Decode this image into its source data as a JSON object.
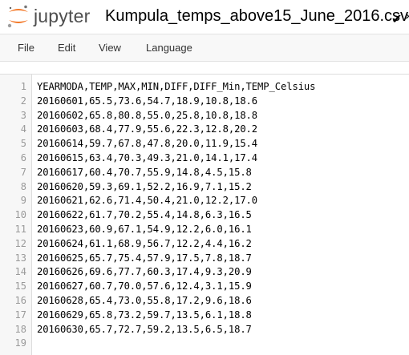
{
  "header": {
    "logo_text": "jupyter",
    "filename": "Kumpula_temps_above15_June_2016.csv",
    "saved_icon": "checkmark-icon",
    "more_icon": "more-icon"
  },
  "menu": {
    "items": [
      "File",
      "Edit",
      "View",
      "Language"
    ]
  },
  "editor": {
    "lines": [
      {
        "number": "1",
        "text": "YEARMODA,TEMP,MAX,MIN,DIFF,DIFF_Min,TEMP_Celsius"
      },
      {
        "number": "2",
        "text": "20160601,65.5,73.6,54.7,18.9,10.8,18.6"
      },
      {
        "number": "3",
        "text": "20160602,65.8,80.8,55.0,25.8,10.8,18.8"
      },
      {
        "number": "4",
        "text": "20160603,68.4,77.9,55.6,22.3,12.8,20.2"
      },
      {
        "number": "5",
        "text": "20160614,59.7,67.8,47.8,20.0,11.9,15.4"
      },
      {
        "number": "6",
        "text": "20160615,63.4,70.3,49.3,21.0,14.1,17.4"
      },
      {
        "number": "7",
        "text": "20160617,60.4,70.7,55.9,14.8,4.5,15.8"
      },
      {
        "number": "8",
        "text": "20160620,59.3,69.1,52.2,16.9,7.1,15.2"
      },
      {
        "number": "9",
        "text": "20160621,62.6,71.4,50.4,21.0,12.2,17.0"
      },
      {
        "number": "10",
        "text": "20160622,61.7,70.2,55.4,14.8,6.3,16.5"
      },
      {
        "number": "11",
        "text": "20160623,60.9,67.1,54.9,12.2,6.0,16.1"
      },
      {
        "number": "12",
        "text": "20160624,61.1,68.9,56.7,12.2,4.4,16.2"
      },
      {
        "number": "13",
        "text": "20160625,65.7,75.4,57.9,17.5,7.8,18.7"
      },
      {
        "number": "14",
        "text": "20160626,69.6,77.7,60.3,17.4,9.3,20.9"
      },
      {
        "number": "15",
        "text": "20160627,60.7,70.0,57.6,12.4,3.1,15.9"
      },
      {
        "number": "16",
        "text": "20160628,65.4,73.0,55.8,17.2,9.6,18.6"
      },
      {
        "number": "17",
        "text": "20160629,65.8,73.2,59.7,13.5,6.1,18.8"
      },
      {
        "number": "18",
        "text": "20160630,65.7,72.7,59.2,13.5,6.5,18.7"
      },
      {
        "number": "19",
        "text": ""
      }
    ]
  },
  "colors": {
    "logo_orange": "#f37726",
    "menubar_bg": "#f8f8f8",
    "gutter_bg": "#f7f7f7",
    "line_number": "#999999"
  }
}
